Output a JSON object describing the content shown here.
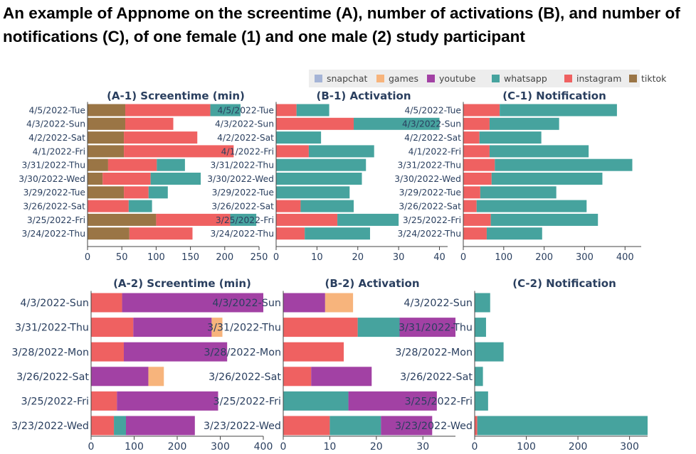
{
  "title": "An example of Appnome on the screentime (A), number of activations (B), and number of notifications (C), of one female (1) and one male (2) study participant",
  "legend": [
    {
      "name": "snapchat",
      "color": "#a5b4d6"
    },
    {
      "name": "games",
      "color": "#f7b47c"
    },
    {
      "name": "youtube",
      "color": "#a241a4"
    },
    {
      "name": "whatsapp",
      "color": "#46a39e"
    },
    {
      "name": "instagram",
      "color": "#ef6161"
    },
    {
      "name": "tiktok",
      "color": "#9a7545"
    }
  ],
  "chart_data": [
    {
      "type": "bar",
      "orientation": "horizontal",
      "stacked": true,
      "title": "(A-1) Screentime (min)",
      "categories": [
        "4/5/2022-Tue",
        "4/3/2022-Sun",
        "4/2/2022-Sat",
        "4/1/2022-Fri",
        "3/31/2022-Thu",
        "3/30/2022-Wed",
        "3/29/2022-Tue",
        "3/26/2022-Sat",
        "3/25/2022-Fri",
        "3/24/2022-Thu"
      ],
      "series": [
        {
          "name": "tiktok",
          "values": [
            55,
            55,
            53,
            53,
            30,
            22,
            53,
            0,
            100,
            61
          ]
        },
        {
          "name": "instagram",
          "values": [
            124,
            70,
            107,
            160,
            71,
            70,
            36,
            60,
            108,
            92
          ]
        },
        {
          "name": "whatsapp",
          "values": [
            44,
            0,
            0,
            0,
            41,
            73,
            28,
            34,
            38,
            0
          ]
        }
      ],
      "xlim": [
        0,
        250
      ],
      "xticks": [
        0,
        50,
        100,
        150,
        200,
        250
      ]
    },
    {
      "type": "bar",
      "orientation": "horizontal",
      "stacked": true,
      "title": "(B-1) Activation",
      "categories": [
        "4/5/2022-Tue",
        "4/3/2022-Sun",
        "4/2/2022-Sat",
        "4/1/2022-Fri",
        "3/31/2022-Thu",
        "3/30/2022-Wed",
        "3/29/2022-Tue",
        "3/26/2022-Sat",
        "3/25/2022-Fri",
        "3/24/2022-Thu"
      ],
      "series": [
        {
          "name": "instagram",
          "values": [
            5,
            19,
            0,
            8,
            0,
            0,
            0,
            6,
            15,
            7
          ]
        },
        {
          "name": "whatsapp",
          "values": [
            8,
            21,
            11,
            16,
            22,
            21,
            18,
            13,
            15,
            16
          ]
        }
      ],
      "xlim": [
        0,
        42
      ],
      "xticks": [
        0,
        10,
        20,
        30,
        40
      ]
    },
    {
      "type": "bar",
      "orientation": "horizontal",
      "stacked": true,
      "title": "(C-1) Notification",
      "categories": [
        "4/5/2022-Tue",
        "4/3/2022-Sun",
        "4/2/2022-Sat",
        "4/1/2022-Fri",
        "3/31/2022-Thu",
        "3/30/2022-Wed",
        "3/29/2022-Tue",
        "3/26/2022-Sat",
        "3/25/2022-Fri",
        "3/24/2022-Thu"
      ],
      "series": [
        {
          "name": "instagram",
          "values": [
            90,
            65,
            40,
            65,
            78,
            70,
            42,
            33,
            68,
            58
          ]
        },
        {
          "name": "whatsapp",
          "values": [
            290,
            172,
            153,
            245,
            340,
            274,
            188,
            272,
            265,
            137
          ]
        }
      ],
      "xlim": [
        0,
        440
      ],
      "xticks": [
        0,
        100,
        200,
        300,
        400
      ]
    },
    {
      "type": "bar",
      "orientation": "horizontal",
      "stacked": true,
      "title": "(A-2) Screentime (min)",
      "categories": [
        "4/3/2022-Sun",
        "3/31/2022-Thu",
        "3/28/2022-Mon",
        "3/26/2022-Sat",
        "3/25/2022-Fri",
        "3/23/2022-Wed"
      ],
      "series": [
        {
          "name": "instagram",
          "values": [
            72,
            98,
            76,
            0,
            60,
            53
          ]
        },
        {
          "name": "whatsapp",
          "values": [
            0,
            0,
            0,
            0,
            0,
            28
          ]
        },
        {
          "name": "youtube",
          "values": [
            328,
            182,
            240,
            133,
            235,
            160
          ]
        },
        {
          "name": "games",
          "values": [
            0,
            25,
            0,
            36,
            0,
            0
          ]
        }
      ],
      "xlim": [
        0,
        400
      ],
      "xticks": [
        0,
        100,
        200,
        300,
        400
      ]
    },
    {
      "type": "bar",
      "orientation": "horizontal",
      "stacked": true,
      "title": "(B-2) Activation",
      "categories": [
        "4/3/2022-Sun",
        "3/31/2022-Thu",
        "3/28/2022-Mon",
        "3/26/2022-Sat",
        "3/25/2022-Fri",
        "3/23/2022-Wed"
      ],
      "series": [
        {
          "name": "instagram",
          "values": [
            0,
            16,
            13,
            6,
            0,
            10
          ]
        },
        {
          "name": "whatsapp",
          "values": [
            0,
            9,
            0,
            0,
            14,
            11
          ]
        },
        {
          "name": "youtube",
          "values": [
            9,
            12,
            0,
            13,
            19,
            11
          ]
        },
        {
          "name": "games",
          "values": [
            6,
            0,
            0,
            0,
            0,
            0
          ]
        }
      ],
      "xlim": [
        0,
        37
      ],
      "xticks": [
        0,
        10,
        20,
        30
      ]
    },
    {
      "type": "bar",
      "orientation": "horizontal",
      "stacked": true,
      "title": "(C-2) Notification",
      "categories": [
        "4/3/2022-Sun",
        "3/31/2022-Thu",
        "3/28/2022-Mon",
        "3/26/2022-Sat",
        "3/25/2022-Fri",
        "3/23/2022-Wed"
      ],
      "series": [
        {
          "name": "instagram",
          "values": [
            0,
            0,
            0,
            0,
            0,
            5
          ]
        },
        {
          "name": "whatsapp",
          "values": [
            30,
            22,
            56,
            16,
            26,
            330
          ]
        }
      ],
      "xlim": [
        0,
        335
      ],
      "xticks": [
        0,
        100,
        200,
        300
      ]
    }
  ]
}
